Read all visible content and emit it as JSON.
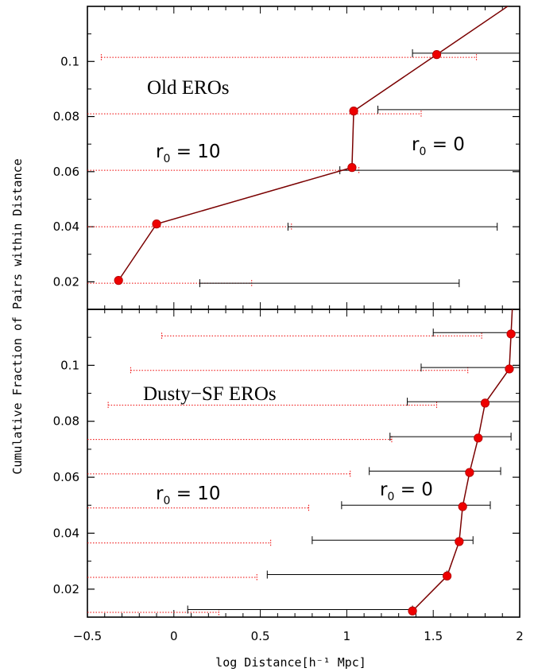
{
  "chart_data": {
    "type": "scatter",
    "xlabel": "log Distance[h⁻¹ Mpc]",
    "ylabel": "Cumulative Fraction of Pairs within Distance",
    "xlim": [
      -0.5,
      2
    ],
    "xticks": [
      -0.5,
      0,
      0.5,
      1,
      1.5,
      2
    ],
    "xtick_labels": [
      "−0.5",
      "0",
      "0.5",
      "1",
      "1.5",
      "2"
    ],
    "grid": false,
    "colors": {
      "points": "#ee0000",
      "line": "#7a0000",
      "range_r0_0": "#000000",
      "range_r0_10": "#ee0000"
    },
    "panels": [
      {
        "label": "Old EROs",
        "ylim": [
          0.01,
          0.12
        ],
        "yticks": [
          0.02,
          0.04,
          0.06,
          0.08,
          0.1
        ],
        "ytick_labels": [
          "0.02",
          "0.04",
          "0.06",
          "0.08",
          "0.1"
        ],
        "r0_left": {
          "r": "r",
          "sub": "0",
          "rest": " = 10"
        },
        "r0_right": {
          "r": "r",
          "sub": "0",
          "rest": " = 0"
        },
        "points": [
          {
            "x": -0.32,
            "y": 0.0205
          },
          {
            "x": -0.1,
            "y": 0.041
          },
          {
            "x": 1.03,
            "y": 0.0615
          },
          {
            "x": 1.04,
            "y": 0.082
          },
          {
            "x": 1.52,
            "y": 0.1025
          }
        ],
        "ranges_r0_0": [
          {
            "y": 0.0195,
            "x1": 0.15,
            "x2": 1.65
          },
          {
            "y": 0.04,
            "x1": 0.66,
            "x2": 1.87
          },
          {
            "y": 0.0605,
            "x1": 0.96,
            "x2": 2.0
          },
          {
            "y": 0.0825,
            "x1": 1.18,
            "x2": 2.0
          },
          {
            "y": 0.103,
            "x1": 1.38,
            "x2": 2.0
          }
        ],
        "ranges_r0_10": [
          {
            "y": 0.0195,
            "x1": -0.5,
            "x2": 0.45
          },
          {
            "y": 0.04,
            "x1": -0.5,
            "x2": 0.68
          },
          {
            "y": 0.0605,
            "x1": -0.5,
            "x2": 1.07
          },
          {
            "y": 0.081,
            "x1": -0.5,
            "x2": 1.43
          },
          {
            "y": 0.1015,
            "x1": -0.42,
            "x2": 1.75
          }
        ]
      },
      {
        "label": "Dusty−SF EROs",
        "ylim": [
          0.01,
          0.12
        ],
        "yticks": [
          0.02,
          0.04,
          0.06,
          0.08,
          0.1
        ],
        "ytick_labels": [
          "0.02",
          "0.04",
          "0.06",
          "0.08",
          "0.1"
        ],
        "r0_left": {
          "r": "r",
          "sub": "0",
          "rest": " = 10"
        },
        "r0_right": {
          "r": "r",
          "sub": "0",
          "rest": " = 0"
        },
        "points": [
          {
            "x": 1.38,
            "y": 0.0122
          },
          {
            "x": 1.58,
            "y": 0.0247
          },
          {
            "x": 1.65,
            "y": 0.037
          },
          {
            "x": 1.67,
            "y": 0.0495
          },
          {
            "x": 1.71,
            "y": 0.0617
          },
          {
            "x": 1.76,
            "y": 0.074
          },
          {
            "x": 1.8,
            "y": 0.0865
          },
          {
            "x": 1.94,
            "y": 0.0987
          },
          {
            "x": 1.95,
            "y": 0.1112
          }
        ],
        "ranges_r0_0": [
          {
            "y": 0.0127,
            "x1": 0.08,
            "x2": 1.38
          },
          {
            "y": 0.0252,
            "x1": 0.54,
            "x2": 1.58
          },
          {
            "y": 0.0375,
            "x1": 0.8,
            "x2": 1.73
          },
          {
            "y": 0.05,
            "x1": 0.97,
            "x2": 1.83
          },
          {
            "y": 0.0622,
            "x1": 1.13,
            "x2": 1.89
          },
          {
            "y": 0.0745,
            "x1": 1.25,
            "x2": 1.95
          },
          {
            "y": 0.087,
            "x1": 1.35,
            "x2": 2.0
          },
          {
            "y": 0.0992,
            "x1": 1.43,
            "x2": 2.0
          },
          {
            "y": 0.1117,
            "x1": 1.5,
            "x2": 2.0
          }
        ],
        "ranges_r0_10": [
          {
            "y": 0.0117,
            "x1": -0.5,
            "x2": 0.26
          },
          {
            "y": 0.0242,
            "x1": -0.5,
            "x2": 0.48
          },
          {
            "y": 0.0365,
            "x1": -0.5,
            "x2": 0.56
          },
          {
            "y": 0.049,
            "x1": -0.5,
            "x2": 0.78
          },
          {
            "y": 0.0612,
            "x1": -0.5,
            "x2": 1.02
          },
          {
            "y": 0.0735,
            "x1": -0.5,
            "x2": 1.26
          },
          {
            "y": 0.0858,
            "x1": -0.38,
            "x2": 1.52
          },
          {
            "y": 0.0982,
            "x1": -0.25,
            "x2": 1.7
          },
          {
            "y": 0.1105,
            "x1": -0.07,
            "x2": 1.78
          }
        ]
      }
    ]
  }
}
